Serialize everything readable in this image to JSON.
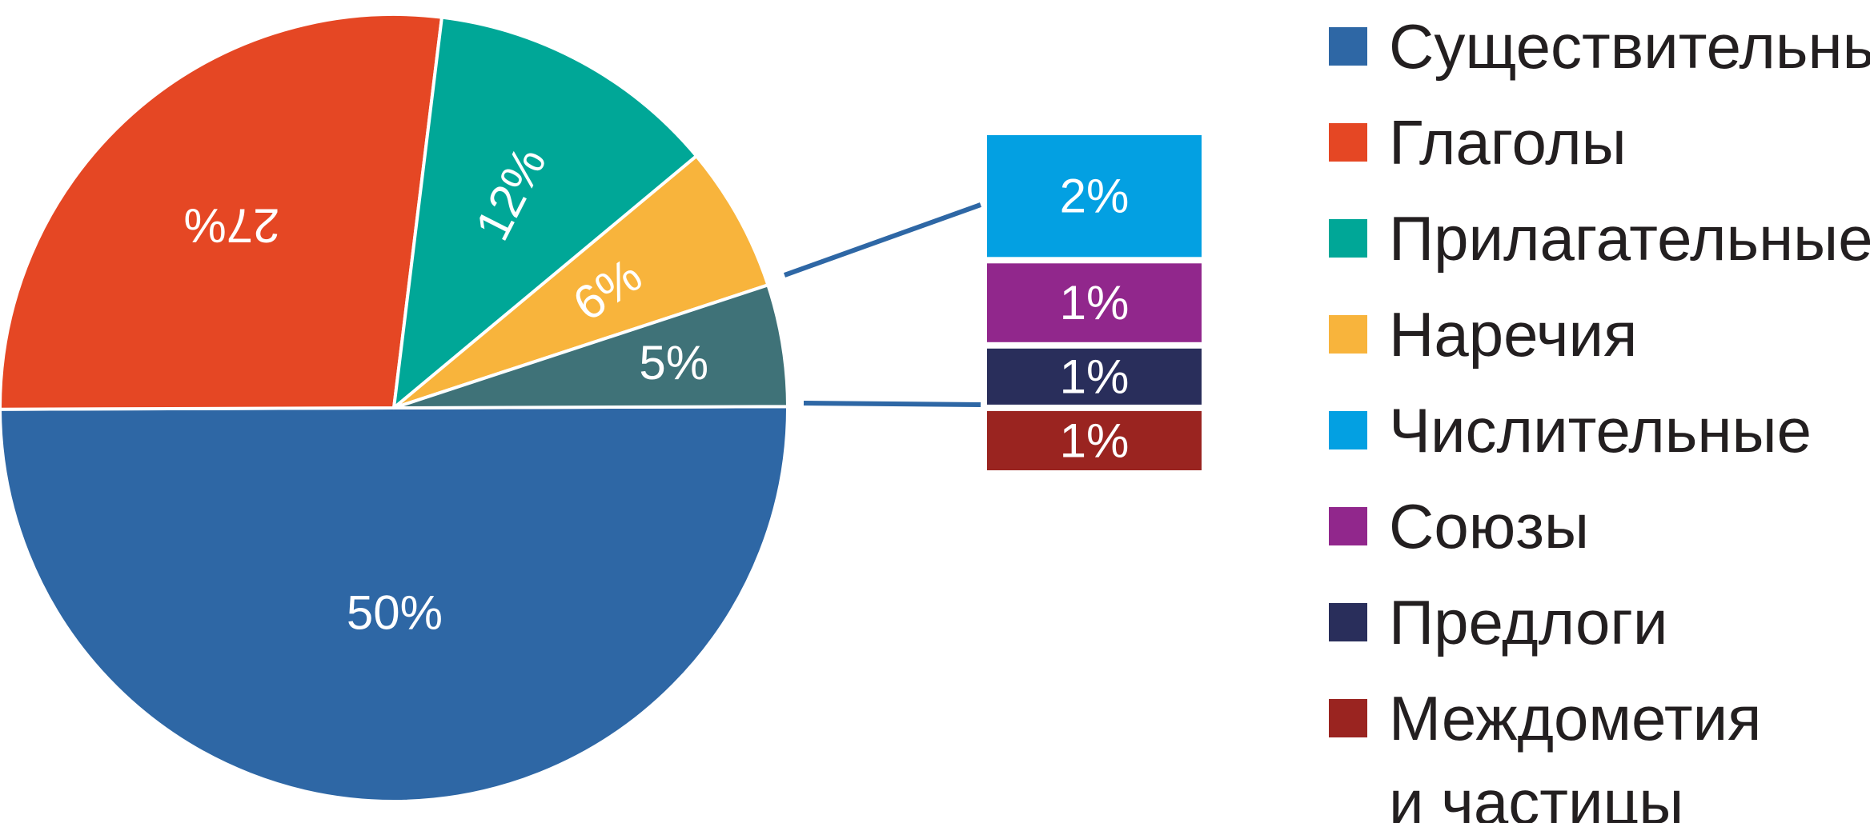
{
  "chart_data": {
    "type": "pie",
    "title": "",
    "slices": [
      {
        "label": "Существительные",
        "value": 50,
        "display": "50%",
        "color": "#2e67a5"
      },
      {
        "label": "Глаголы",
        "value": 27,
        "display": "27%",
        "color": "#e54724"
      },
      {
        "label": "Прилагательные",
        "value": 12,
        "display": "12%",
        "color": "#00a797"
      },
      {
        "label": "Наречия",
        "value": 6,
        "display": "6%",
        "color": "#f8b43c"
      },
      {
        "label": "Числительные и др.",
        "value": 5,
        "display": "5%",
        "color": "#3f7278"
      }
    ],
    "breakout": {
      "of_slice": "5%",
      "segments": [
        {
          "label": "Числительные",
          "value": 2,
          "display": "2%",
          "color": "#03a0e2"
        },
        {
          "label": "Союзы",
          "value": 1,
          "display": "1%",
          "color": "#91278c"
        },
        {
          "label": "Предлоги",
          "value": 1,
          "display": "1%",
          "color": "#292e5b"
        },
        {
          "label": "Междометия и частицы",
          "value": 1,
          "display": "1%",
          "color": "#9a2420"
        }
      ]
    },
    "legend": {
      "placement": "right",
      "entries": [
        {
          "lines": [
            "Существительные"
          ],
          "color": "#2e67a5"
        },
        {
          "lines": [
            "Глаголы"
          ],
          "color": "#e54724"
        },
        {
          "lines": [
            "Прилагательные"
          ],
          "color": "#00a797"
        },
        {
          "lines": [
            "Наречия"
          ],
          "color": "#f8b43c"
        },
        {
          "lines": [
            "Числительные"
          ],
          "color": "#03a0e2"
        },
        {
          "lines": [
            "Союзы"
          ],
          "color": "#91278c"
        },
        {
          "lines": [
            "Предлоги"
          ],
          "color": "#292e5b"
        },
        {
          "lines": [
            "Междометия",
            "и частицы"
          ],
          "color": "#9a2420"
        }
      ]
    },
    "connector_color": "#2e67a5"
  }
}
